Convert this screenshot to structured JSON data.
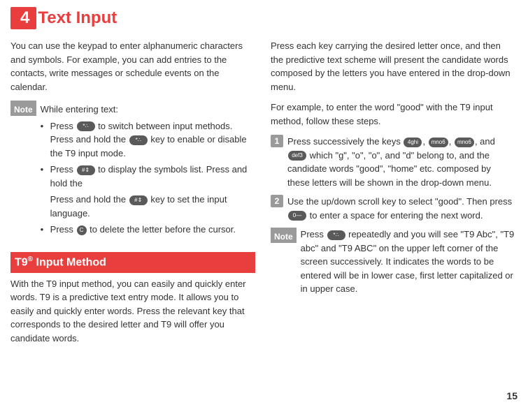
{
  "chapter": {
    "number": "4",
    "title": "Text Input"
  },
  "left": {
    "intro": "You can use the keypad to enter alphanumeric characters and symbols. For example, you can add entries to the contacts, write messages or schedule events on the calendar.",
    "note": {
      "label": "Note",
      "line1": "While entering text:",
      "b1a": "Press ",
      "b1b": " to switch between input methods. Press and hold the ",
      "b1c": " key to enable or disable the T9 input mode.",
      "b2a": "Press ",
      "b2b": " to display the symbols list. Press and hold the ",
      "b2c": " key to set the input language.",
      "b3a": "Press ",
      "b3b": " to delete the letter before the cursor."
    },
    "section_title_pre": " T9",
    "section_title_sup": "®",
    "section_title_post": " Input Method",
    "t9_para": "With the T9 input method, you can easily and quickly enter words. T9 is a predictive text entry mode. It allows you to easily and quickly enter words. Press the relevant key that corresponds to the desired letter and T9 will offer you candidate words."
  },
  "right": {
    "para1": "Press each key carrying the desired letter once, and then the predictive text scheme will present the candidate words composed by the letters you have entered in the drop-down menu.",
    "para2": "For example, to enter the word \"good\" with the T9 input method, follow these steps.",
    "step1": {
      "num": "1",
      "a": "Press successively the keys ",
      "b": ", ",
      "c": ", ",
      "d": ", and ",
      "e": " which \"g\", \"o\", \"o\", and \"d\" belong to, and the candidate words \"good\", \"home\" etc. composed by these letters will be shown in the drop-down menu."
    },
    "step2": {
      "num": "2",
      "a": "Use the up/down scroll key to select \"good\". Then press ",
      "b": " to enter a space for entering the next word."
    },
    "note2": {
      "label": "Note",
      "a": "Press ",
      "b": " repeatedly and you will see \"T9 Abc\", \"T9 abc\" and \"T9 ABC\" on the upper left corner of the screen successively. It indicates the words to be entered will be in lower case, first letter capitalized or in upper case."
    }
  },
  "keys": {
    "star": "*∴",
    "hash": "#⇕",
    "c": "C",
    "ghi4": "4ghi",
    "mno6": "mno6",
    "def3": "def3",
    "zero": "0—"
  },
  "page_num": "15"
}
